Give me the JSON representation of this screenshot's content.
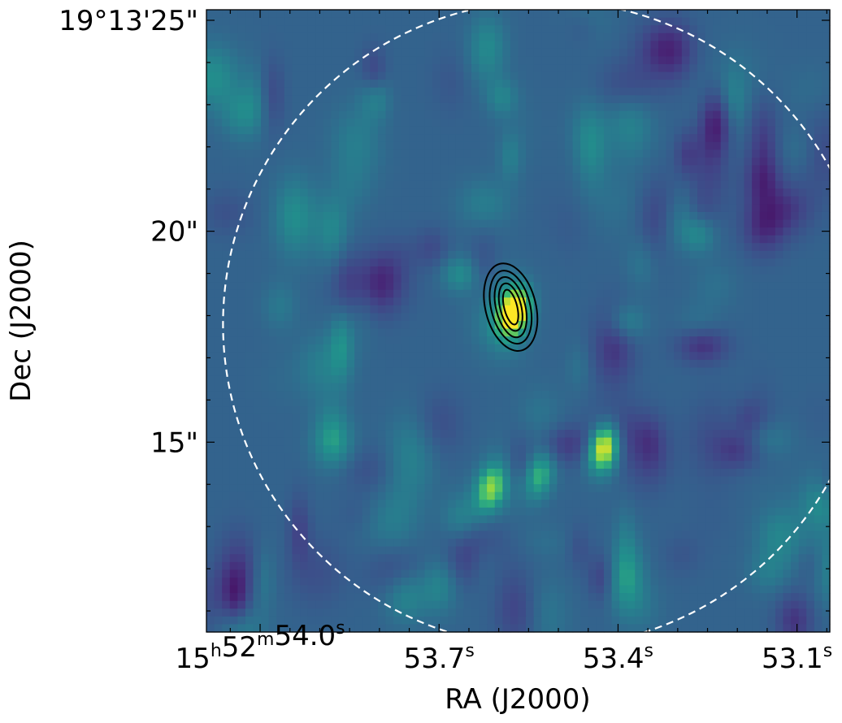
{
  "chart_data": {
    "type": "heatmap",
    "colormap": "viridis",
    "xlabel": "RA (J2000)",
    "ylabel": "Dec (J2000)",
    "x_ticks": [
      {
        "value_sec": 54.0,
        "parts": [
          [
            "15",
            "h"
          ],
          [
            "52",
            "m"
          ],
          [
            "54.0",
            "s"
          ]
        ]
      },
      {
        "value_sec": 53.7,
        "parts": [
          [
            "53.7",
            "s"
          ]
        ]
      },
      {
        "value_sec": 53.4,
        "parts": [
          [
            "53.4",
            "s"
          ]
        ]
      },
      {
        "value_sec": 53.1,
        "parts": [
          [
            "53.1",
            "s"
          ]
        ]
      }
    ],
    "y_ticks": [
      {
        "value_arcsec": 25,
        "label": "19°13'25\""
      },
      {
        "value_arcsec": 20,
        "label": "20\""
      },
      {
        "value_arcsec": 15,
        "label": "15\""
      }
    ],
    "xlim_sec": [
      54.09,
      53.045
    ],
    "ylim_arcsec": [
      10.5,
      25.25
    ],
    "sources": [
      {
        "ra_sec": 53.58,
        "dec_arcsec": 18.2,
        "peak": 1.0,
        "contours": 5,
        "description": "brightest"
      },
      {
        "ra_sec": 53.43,
        "dec_arcsec": 15.0,
        "peak": 0.88
      },
      {
        "ra_sec": 53.62,
        "dec_arcsec": 14.0,
        "peak": 0.62
      },
      {
        "ra_sec": 53.54,
        "dec_arcsec": 14.3,
        "peak": 0.5
      }
    ],
    "primary_beam_circle": {
      "style": "white-dashed"
    },
    "colors": {
      "contour": "#000000",
      "circle": "#ffffff",
      "background": "#ffffff"
    }
  }
}
